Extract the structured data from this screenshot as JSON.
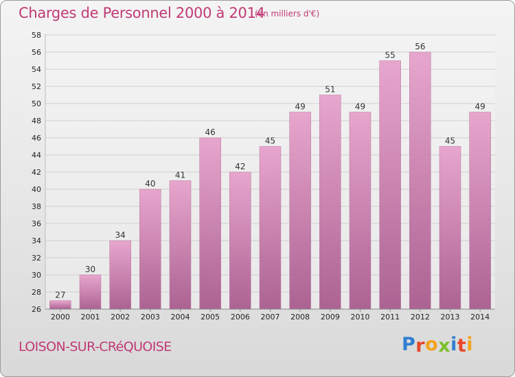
{
  "header": {
    "title": "Charges de Personnel 2000 à 2014",
    "subtitle": "(en milliers d'€)"
  },
  "footer": {
    "commune": "LOISON-SUR-CRéQUOISE",
    "logo_letters": [
      "P",
      "r",
      "o",
      "x",
      "i",
      "t",
      "i"
    ],
    "logo_colors": [
      "#2f7fcf",
      "#e8472c",
      "#f3a21b",
      "#7bbf2a",
      "#2f7fcf",
      "#e8472c",
      "#f3a21b"
    ]
  },
  "colors": {
    "bar_top": "#e7a6cd",
    "bar_bottom": "#ac6393",
    "title": "#c03a76",
    "grid": "#cfcfcf"
  },
  "chart_data": {
    "type": "bar",
    "categories": [
      "2000",
      "2001",
      "2002",
      "2003",
      "2004",
      "2005",
      "2006",
      "2007",
      "2008",
      "2009",
      "2010",
      "2011",
      "2012",
      "2013",
      "2014"
    ],
    "values": [
      27,
      30,
      34,
      40,
      41,
      46,
      42,
      45,
      49,
      51,
      49,
      55,
      56,
      45,
      49
    ],
    "title": "Charges de Personnel 2000 à 2014",
    "subtitle": "(en milliers d'€)",
    "ylim": [
      26,
      58
    ],
    "yticks": [
      26,
      28,
      30,
      32,
      34,
      36,
      38,
      40,
      42,
      44,
      46,
      48,
      50,
      52,
      54,
      56,
      58
    ],
    "grid": true,
    "data_labels": true
  }
}
